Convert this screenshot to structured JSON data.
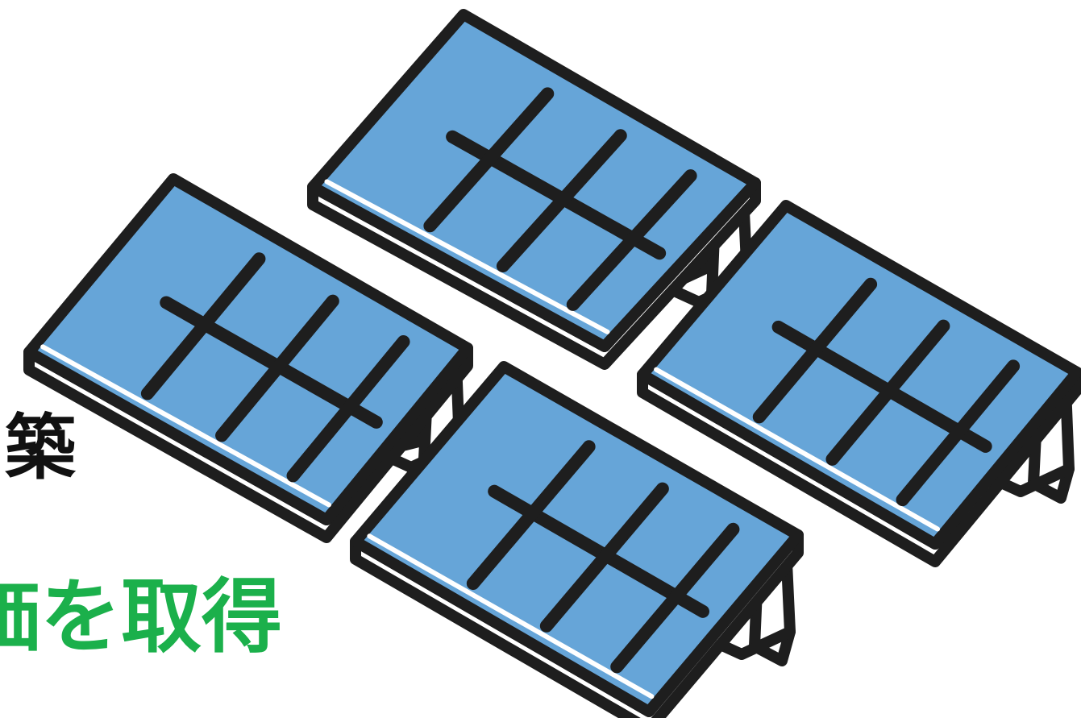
{
  "captions": {
    "line_1": "築",
    "line_2": "価を取得"
  },
  "illustration": {
    "icon": "solar-panel-array-icon",
    "panel_count": 4
  },
  "colors": {
    "panel_fill": "#66a5d8",
    "outline": "#1e1e1e",
    "caption_line_1": "#111111",
    "caption_line_2": "#1bb04b",
    "background": "#ffffff"
  }
}
